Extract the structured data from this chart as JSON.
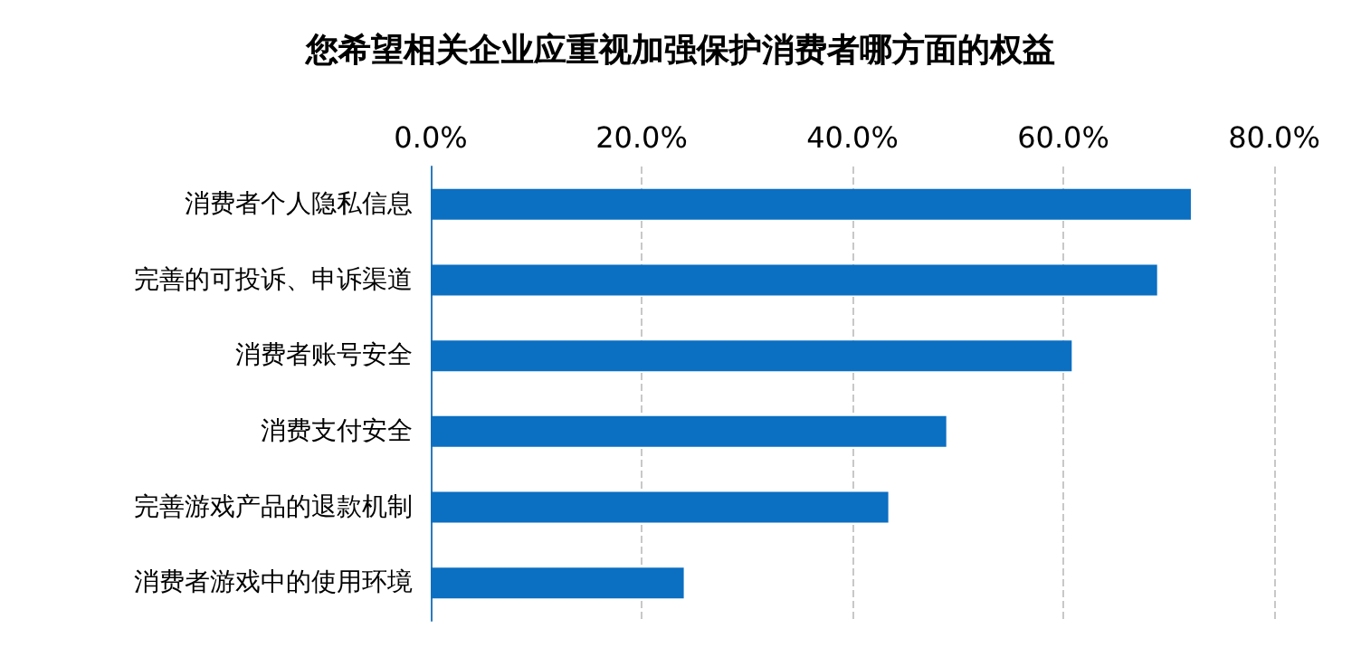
{
  "chart_data": {
    "type": "bar",
    "orientation": "horizontal",
    "title": "您希望相关企业应重视加强保护消费者哪方面的权益",
    "categories": [
      "消费者个人隐私信息",
      "完善的可投诉、申诉渠道",
      "消费者账号安全",
      "消费支付安全",
      "完善游戏产品的退款机制",
      "消费者游戏中的使用环境"
    ],
    "values": [
      72.1,
      68.9,
      60.8,
      48.9,
      43.4,
      24.0
    ],
    "color": "#0b6fc2",
    "xlim": [
      0,
      80
    ],
    "xticks": [
      {
        "value": 0,
        "label": "0.0%"
      },
      {
        "value": 20,
        "label": "20.0%"
      },
      {
        "value": 40,
        "label": "40.0%"
      },
      {
        "value": 60,
        "label": "60.0%"
      },
      {
        "value": 80,
        "label": "80.0%"
      }
    ],
    "grid": "x"
  }
}
